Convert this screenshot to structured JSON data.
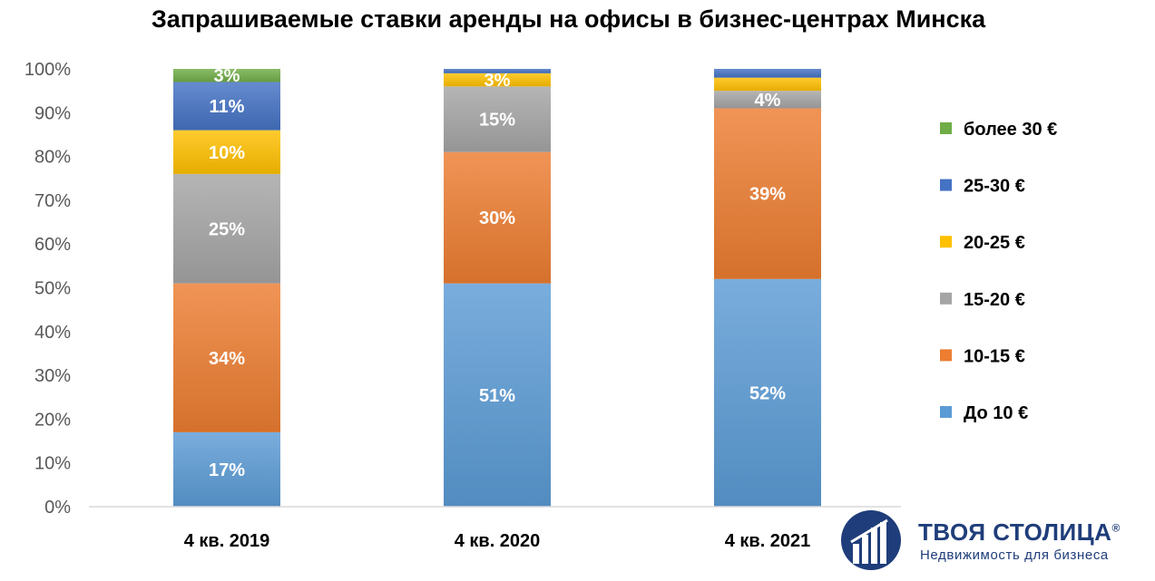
{
  "chart_data": {
    "type": "bar",
    "stacked": true,
    "title": "Запрашиваемые ставки аренды на офисы в бизнес-центрах Минска",
    "categories": [
      "4 кв. 2019",
      "4 кв. 2020",
      "4 кв. 2021"
    ],
    "ylim": [
      0,
      100
    ],
    "yticks": [
      "0%",
      "10%",
      "20%",
      "30%",
      "40%",
      "50%",
      "60%",
      "70%",
      "80%",
      "90%",
      "100%"
    ],
    "grid": false,
    "legend_position": "right",
    "series": [
      {
        "name": "До 10 €",
        "color": "#5b9bd5",
        "values": [
          17,
          51,
          52
        ],
        "labels": [
          "17%",
          "51%",
          "52%"
        ]
      },
      {
        "name": "10-15 €",
        "color": "#ed7d31",
        "values": [
          34,
          30,
          39
        ],
        "labels": [
          "34%",
          "30%",
          "39%"
        ]
      },
      {
        "name": "15-20 €",
        "color": "#a5a5a5",
        "values": [
          25,
          15,
          4
        ],
        "labels": [
          "25%",
          "15%",
          "4%"
        ]
      },
      {
        "name": "20-25 €",
        "color": "#ffc000",
        "values": [
          10,
          3,
          3
        ],
        "labels": [
          "10%",
          "3%",
          ""
        ]
      },
      {
        "name": "25-30 €",
        "color": "#4472c4",
        "values": [
          11,
          1,
          2
        ],
        "labels": [
          "11%",
          "",
          ""
        ]
      },
      {
        "name": "более 30 €",
        "color": "#70ad47",
        "values": [
          3,
          0,
          0
        ],
        "labels": [
          "3%",
          "",
          ""
        ]
      }
    ]
  },
  "logo": {
    "name": "ТВОЯ СТОЛИЦА",
    "registered_mark": "®",
    "tagline": "Недвижимость для бизнеса",
    "color": "#1f3d7a"
  }
}
